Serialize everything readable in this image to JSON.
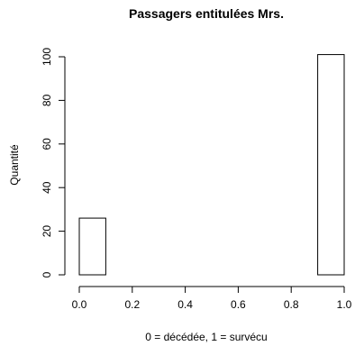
{
  "chart_data": {
    "type": "bar",
    "title": "Passagers entitulées Mrs.",
    "xlabel": "0 = décédée, 1 = survécu",
    "ylabel": "Quantité",
    "xlim": [
      0.0,
      1.0
    ],
    "ylim": [
      0,
      100
    ],
    "bins": [
      {
        "start": 0.0,
        "end": 0.1,
        "count": 26
      },
      {
        "start": 0.1,
        "end": 0.2,
        "count": 0
      },
      {
        "start": 0.2,
        "end": 0.3,
        "count": 0
      },
      {
        "start": 0.3,
        "end": 0.4,
        "count": 0
      },
      {
        "start": 0.4,
        "end": 0.5,
        "count": 0
      },
      {
        "start": 0.5,
        "end": 0.6,
        "count": 0
      },
      {
        "start": 0.6,
        "end": 0.7,
        "count": 0
      },
      {
        "start": 0.7,
        "end": 0.8,
        "count": 0
      },
      {
        "start": 0.8,
        "end": 0.9,
        "count": 0
      },
      {
        "start": 0.9,
        "end": 1.0,
        "count": 101
      }
    ],
    "x_ticks": [
      "0.0",
      "0.2",
      "0.4",
      "0.6",
      "0.8",
      "1.0"
    ],
    "y_ticks": [
      "0",
      "20",
      "40",
      "60",
      "80",
      "100"
    ],
    "grid": false,
    "colors": {
      "bar_fill": "#ffffff",
      "bar_stroke": "#000000"
    }
  }
}
